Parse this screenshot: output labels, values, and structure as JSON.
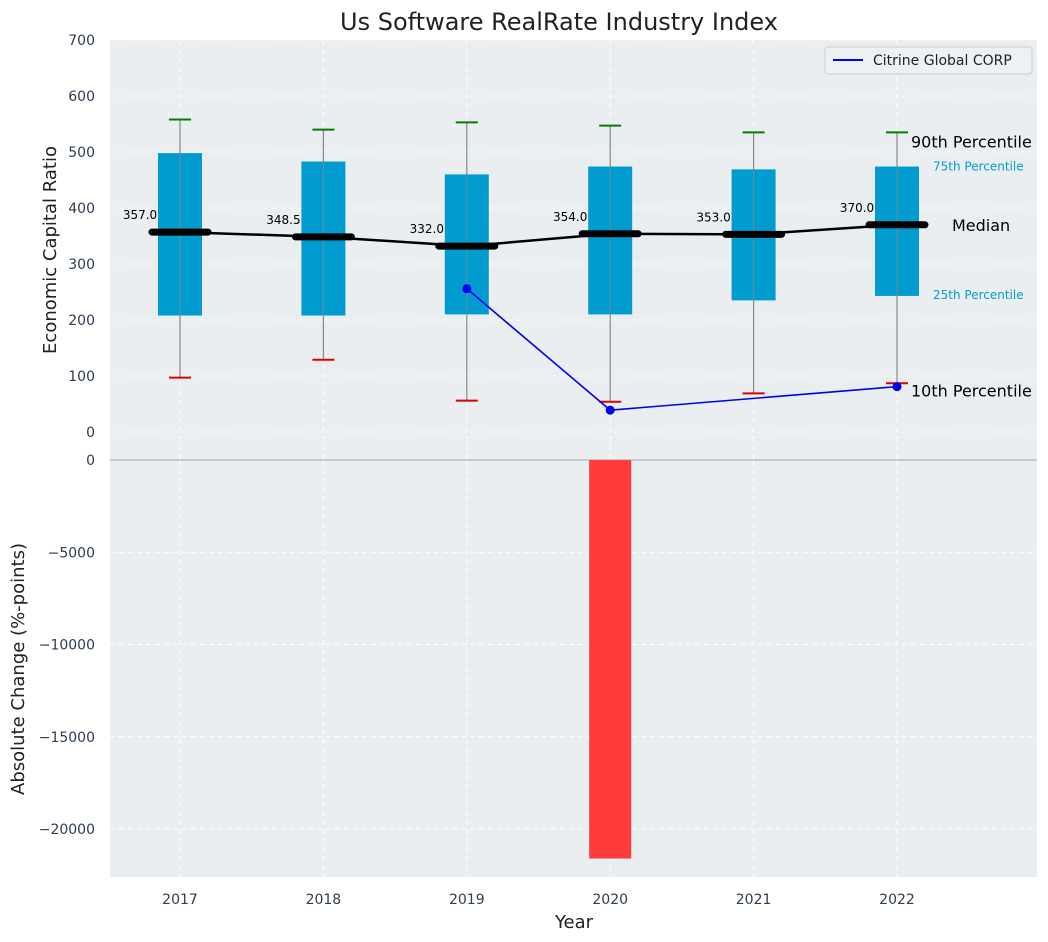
{
  "colors": {
    "panel_bg": "#eaeef0",
    "grid": "#ffffff",
    "box_fill": "#009ccf",
    "median": "#000000",
    "whisker_high": "#008000",
    "whisker_low": "#dd0000",
    "company_line": "#0000ee",
    "change_bar": "#ff3b3b",
    "percentile_label": "#00a0c8",
    "axis_text": "#2f3d4f",
    "title_text": "#222222"
  },
  "chart_data": [
    {
      "type": "box",
      "title": "Us Software RealRate Industry Index",
      "xlabel": "",
      "ylabel": "Economic Capital Ratio",
      "ylim": [
        -50,
        700
      ],
      "yticks": [
        0,
        100,
        200,
        300,
        400,
        500,
        600,
        700
      ],
      "categories": [
        "2017",
        "2018",
        "2019",
        "2020",
        "2021",
        "2022"
      ],
      "grid": true,
      "legend_position": "top-right",
      "p10": [
        97,
        129,
        56,
        54,
        69,
        87
      ],
      "p25": [
        208,
        208,
        210,
        210,
        235,
        243
      ],
      "median": [
        357.0,
        348.5,
        332.0,
        354.0,
        353.0,
        370.0
      ],
      "p75": [
        498,
        483,
        460,
        474,
        469,
        474
      ],
      "p90": [
        558,
        540,
        553,
        547,
        535,
        535
      ],
      "median_labels": [
        "357.0",
        "348.5",
        "332.0",
        "354.0",
        "353.0",
        "370.0"
      ],
      "series": [
        {
          "name": "Citrine Global CORP",
          "x": [
            "2019",
            "2020",
            "2022"
          ],
          "values": [
            256,
            39,
            81
          ]
        }
      ],
      "annotations": {
        "p90": "90th Percentile",
        "p75": "75th Percentile",
        "median": "Median",
        "p25": "25th Percentile",
        "p10": "10th Percentile"
      }
    },
    {
      "type": "bar",
      "xlabel": "Year",
      "ylabel": "Absolute Change (%-points)",
      "ylim": [
        -22600,
        0
      ],
      "yticks": [
        0,
        -5000,
        -10000,
        -15000,
        -20000
      ],
      "ytick_labels": [
        "0",
        "−5000",
        "−10000",
        "−15000",
        "−20000"
      ],
      "categories": [
        "2017",
        "2018",
        "2019",
        "2020",
        "2021",
        "2022"
      ],
      "values": [
        null,
        null,
        null,
        -21600,
        null,
        null
      ],
      "grid": true
    }
  ]
}
